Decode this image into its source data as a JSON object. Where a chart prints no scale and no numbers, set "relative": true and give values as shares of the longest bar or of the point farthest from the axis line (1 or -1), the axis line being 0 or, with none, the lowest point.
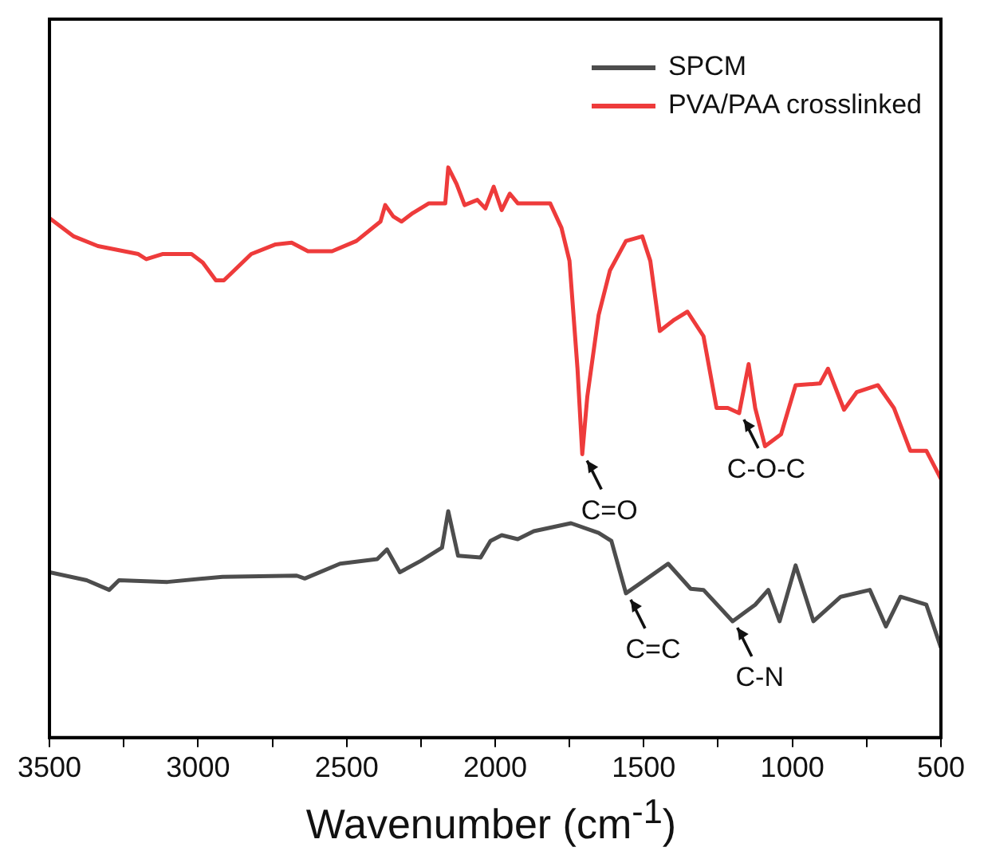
{
  "chart_data": {
    "type": "line",
    "relative": true,
    "xlabel": "Wavenumber (cm$^{-1}$)",
    "xlim": [
      3500,
      500
    ],
    "xticks": [
      3500,
      {
        "value": 3250,
        "label": null
      },
      3000,
      {
        "value": 2750,
        "label": null
      },
      2500,
      {
        "value": 2250,
        "label": null
      },
      2000,
      {
        "value": 1750,
        "label": null
      },
      1500,
      {
        "value": 1250,
        "label": null
      },
      1000,
      {
        "value": 750,
        "label": null
      },
      500
    ],
    "legend": "top right",
    "grid": false,
    "marker": "none",
    "line_style": "solid",
    "series": [
      {
        "name": "SPCM",
        "color": "#4d4d4d",
        "x": [
          3500,
          3375,
          3299,
          3266,
          3103,
          2918,
          2668,
          2641,
          2522,
          2397,
          2364,
          2321,
          2250,
          2179,
          2158,
          2125,
          2049,
          2016,
          1978,
          1924,
          1870,
          1745,
          1652,
          1609,
          1560,
          1505,
          1418,
          1342,
          1299,
          1201,
          1125,
          1081,
          1043,
          989,
          929,
          837,
          739,
          685,
          636,
          549,
          500
        ],
        "values": [
          0.29,
          0.276,
          0.259,
          0.276,
          0.273,
          0.282,
          0.284,
          0.279,
          0.305,
          0.313,
          0.33,
          0.29,
          0.31,
          0.333,
          0.397,
          0.319,
          0.316,
          0.345,
          0.355,
          0.348,
          0.362,
          0.376,
          0.359,
          0.345,
          0.253,
          0.273,
          0.305,
          0.261,
          0.259,
          0.204,
          0.233,
          0.259,
          0.204,
          0.302,
          0.204,
          0.247,
          0.259,
          0.195,
          0.247,
          0.233,
          0.158
        ]
      },
      {
        "name": "PVA/PAA crosslinked",
        "color": "#ee3b3b",
        "x": [
          3500,
          3418,
          3337,
          3201,
          3174,
          3120,
          3022,
          2984,
          2940,
          2913,
          2821,
          2739,
          2685,
          2630,
          2549,
          2467,
          2386,
          2370,
          2343,
          2315,
          2277,
          2223,
          2168,
          2158,
          2130,
          2103,
          2060,
          2033,
          2005,
          1978,
          1951,
          1924,
          1815,
          1777,
          1750,
          1723,
          1707,
          1690,
          1652,
          1614,
          1560,
          1505,
          1478,
          1446,
          1397,
          1353,
          1299,
          1255,
          1217,
          1179,
          1147,
          1125,
          1092,
          1038,
          989,
          907,
          880,
          826,
          783,
          712,
          658,
          603,
          549,
          500
        ],
        "values": [
          0.911,
          0.879,
          0.862,
          0.848,
          0.839,
          0.848,
          0.848,
          0.833,
          0.802,
          0.802,
          0.848,
          0.865,
          0.868,
          0.853,
          0.853,
          0.871,
          0.905,
          0.934,
          0.914,
          0.905,
          0.92,
          0.937,
          0.937,
          1.0,
          0.971,
          0.934,
          0.943,
          0.928,
          0.966,
          0.925,
          0.954,
          0.937,
          0.937,
          0.894,
          0.836,
          0.647,
          0.497,
          0.598,
          0.741,
          0.819,
          0.871,
          0.879,
          0.836,
          0.713,
          0.733,
          0.747,
          0.704,
          0.578,
          0.578,
          0.569,
          0.655,
          0.578,
          0.511,
          0.532,
          0.618,
          0.621,
          0.647,
          0.575,
          0.606,
          0.618,
          0.578,
          0.503,
          0.503,
          0.454
        ]
      }
    ],
    "annotations": [
      {
        "text": "C=O",
        "x": 1707,
        "y": 0.497
      },
      {
        "text": "C-O-C",
        "x": 1179,
        "y": 0.569
      },
      {
        "text": "C=C",
        "x": 1560,
        "y": 0.253
      },
      {
        "text": "C-N",
        "x": 1201,
        "y": 0.204
      }
    ]
  }
}
